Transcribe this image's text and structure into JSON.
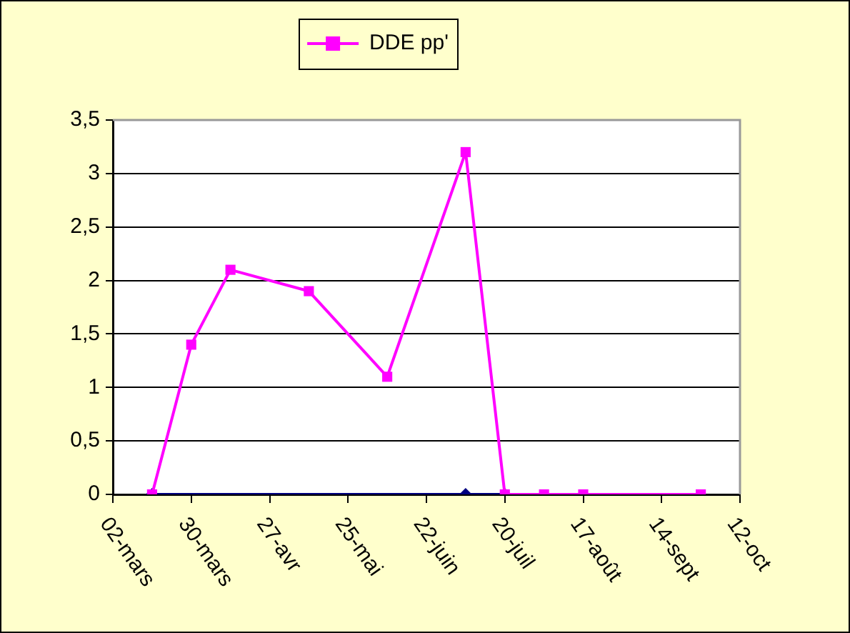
{
  "chart_data": {
    "type": "line",
    "x": [
      "--03-16",
      "--03-30",
      "--04-13",
      "--05-11",
      "--06-08",
      "--07-06",
      "--07-20",
      "--08-03",
      "--08-17",
      "--09-28"
    ],
    "series": [
      {
        "color": "#000080",
        "marker": "diamond",
        "x": [
          "--03-16",
          "--07-06",
          "--07-20"
        ],
        "values": [
          0,
          0,
          0
        ]
      },
      {
        "name": "DDE pp'",
        "color": "#ff00ff",
        "marker": "square",
        "values": [
          0,
          1.4,
          2.1,
          1.9,
          1.1,
          3.2,
          0,
          0,
          0,
          0
        ]
      }
    ],
    "xlim": [
      "--03-02",
      "--10-12"
    ],
    "xticks": [
      {
        "value": "--03-02",
        "label": "02-mars"
      },
      {
        "value": "--03-30",
        "label": "30-mars"
      },
      {
        "value": "--04-27",
        "label": "27-avr"
      },
      {
        "value": "--05-25",
        "label": "25-mai"
      },
      {
        "value": "--06-22",
        "label": "22-juin"
      },
      {
        "value": "--07-20",
        "label": "20-juil"
      },
      {
        "value": "--08-17",
        "label": "17-août"
      },
      {
        "value": "--09-14",
        "label": "14-sept"
      },
      {
        "value": "--10-12",
        "label": "12-oct"
      }
    ],
    "ylim": [
      0,
      3.5
    ],
    "yticks": [
      0,
      {
        "value": 0.5,
        "label": "0,5"
      },
      1,
      {
        "value": 1.5,
        "label": "1,5"
      },
      2,
      {
        "value": 2.5,
        "label": "2,5"
      },
      3,
      {
        "value": 3.5,
        "label": "3,5"
      }
    ],
    "grid": "y",
    "legend": "top",
    "line_style": "solid"
  }
}
